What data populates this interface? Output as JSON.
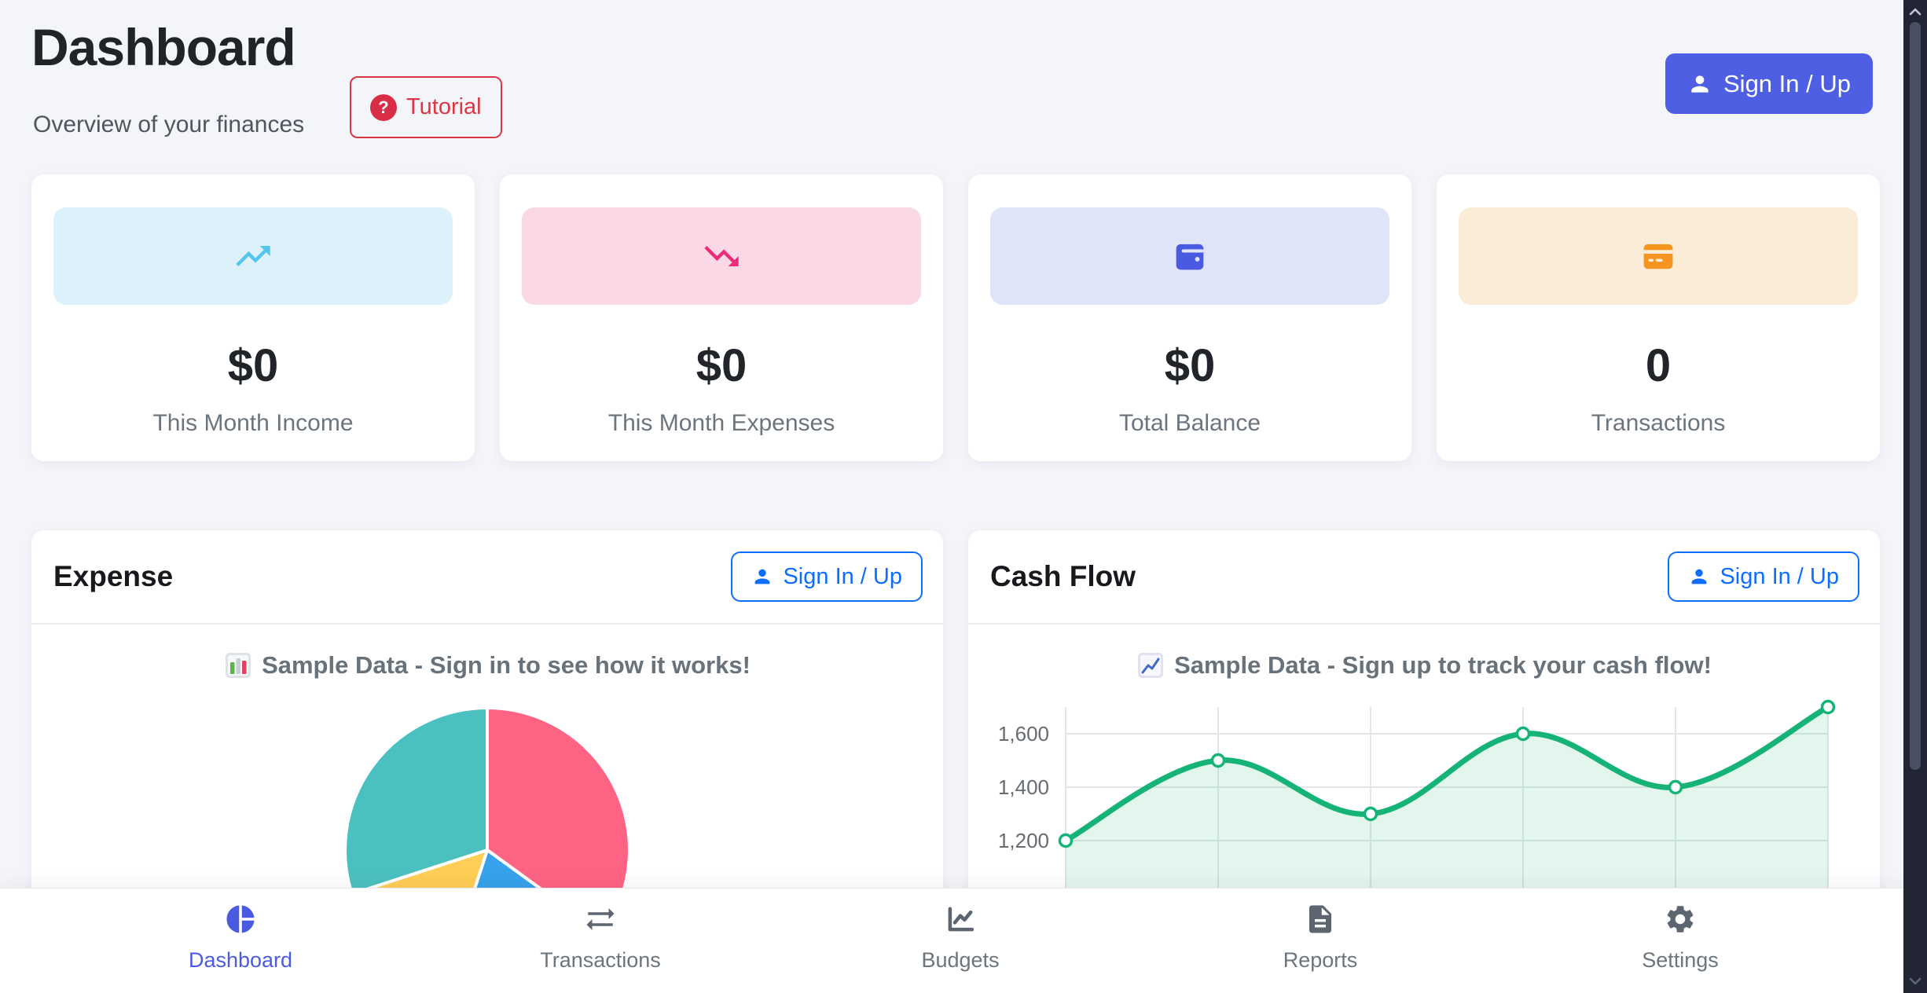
{
  "header": {
    "title": "Dashboard",
    "subtitle": "Overview of your finances",
    "tutorial": {
      "label": "Tutorial",
      "icon": "question-circle-icon",
      "color": "#dc3545"
    },
    "signin": {
      "label": "Sign In / Up",
      "bg": "#4e5fe4"
    }
  },
  "stat_cards": [
    {
      "label": "This Month Income",
      "value": "$0",
      "icon": "trending-up-icon",
      "icon_color": "#53c6ed",
      "banner_bg": "#dcf1fa"
    },
    {
      "label": "This Month Expenses",
      "value": "$0",
      "icon": "trending-down-icon",
      "icon_color": "#ee2a7b",
      "banner_bg": "#fbd8e6"
    },
    {
      "label": "Total Balance",
      "value": "$0",
      "icon": "wallet-icon",
      "icon_color": "#4a5ae2",
      "banner_bg": "#e0e4f9"
    },
    {
      "label": "Transactions",
      "value": "0",
      "icon": "credit-card-icon",
      "icon_color": "#f5941f",
      "banner_bg": "#fbecd7"
    }
  ],
  "panels": {
    "expense": {
      "title": "Expense",
      "signin_label": "Sign In / Up",
      "sample_note": "Sample Data - Sign in to see how it works!",
      "emoji": "bar-chart-emoji"
    },
    "cashflow": {
      "title": "Cash Flow",
      "signin_label": "Sign In / Up",
      "sample_note": "Sample Data - Sign up to track your cash flow!",
      "emoji": "chart-increasing-emoji"
    }
  },
  "chart_data": [
    {
      "id": "expense-pie",
      "type": "pie",
      "title": "Sample Data - Sign in to see how it works!",
      "values": [
        35,
        20,
        15,
        30
      ],
      "unit": "percent (estimated from slice angles)",
      "colors": [
        "#FF6384",
        "#36A2EB",
        "#FFCE56",
        "#4BC0C0"
      ],
      "start": "top",
      "direction": "clockwise",
      "legend": "none",
      "labels_visible": false
    },
    {
      "id": "cashflow-line",
      "type": "line",
      "title": "Sample Data - Sign up to track your cash flow!",
      "x_index": [
        1,
        2,
        3,
        4,
        5,
        6
      ],
      "values": [
        1200,
        1500,
        1300,
        1600,
        1400,
        1700
      ],
      "ytick_values": [
        1600,
        1400,
        1200
      ],
      "ytick_labels": [
        "1,600",
        "1,400",
        "1,200"
      ],
      "x_labels_visible": false,
      "grid": true,
      "line_color": "#16b377",
      "point_style": "hollow-circle",
      "fill": "rgba(22,179,119,0.12)"
    }
  ],
  "nav": {
    "items": [
      {
        "label": "Dashboard",
        "icon": "pie-chart-icon",
        "active": true
      },
      {
        "label": "Transactions",
        "icon": "swap-arrows-icon",
        "active": false
      },
      {
        "label": "Budgets",
        "icon": "graph-icon",
        "active": false
      },
      {
        "label": "Reports",
        "icon": "file-text-icon",
        "active": false
      },
      {
        "label": "Settings",
        "icon": "gear-icon",
        "active": false
      }
    ],
    "active_color": "#4b5be1",
    "inactive_color": "#6c757d",
    "inactive_icon_color": "#5d6571"
  },
  "scrollbar": {
    "orientation": "vertical"
  }
}
